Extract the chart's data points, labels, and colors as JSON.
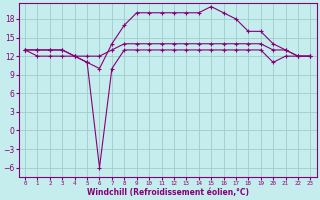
{
  "xlabel": "Windchill (Refroidissement éolien,°C)",
  "background_color": "#c5eded",
  "grid_color": "#a0cccc",
  "line_color": "#880077",
  "x_hours": [
    0,
    1,
    2,
    3,
    4,
    5,
    6,
    7,
    8,
    9,
    10,
    11,
    12,
    13,
    14,
    15,
    16,
    17,
    18,
    19,
    20,
    21,
    22,
    23
  ],
  "curve_top": [
    13,
    13,
    13,
    13,
    12,
    11,
    10,
    14,
    17,
    19,
    19,
    19,
    19,
    19,
    19,
    20,
    19,
    18,
    16,
    16,
    14,
    13,
    12,
    12
  ],
  "curve_mid": [
    13,
    13,
    13,
    13,
    12,
    12,
    12,
    13,
    14,
    14,
    14,
    14,
    14,
    14,
    14,
    14,
    14,
    14,
    14,
    14,
    13,
    13,
    12,
    12
  ],
  "curve_bot": [
    13,
    12,
    12,
    12,
    12,
    11,
    -6,
    10,
    13,
    13,
    13,
    13,
    13,
    13,
    13,
    13,
    13,
    13,
    13,
    13,
    11,
    12,
    12,
    12
  ],
  "ylim": [
    -7.5,
    20.5
  ],
  "yticks": [
    -6,
    -3,
    0,
    3,
    6,
    9,
    12,
    15,
    18
  ],
  "xlim": [
    -0.5,
    23.5
  ]
}
